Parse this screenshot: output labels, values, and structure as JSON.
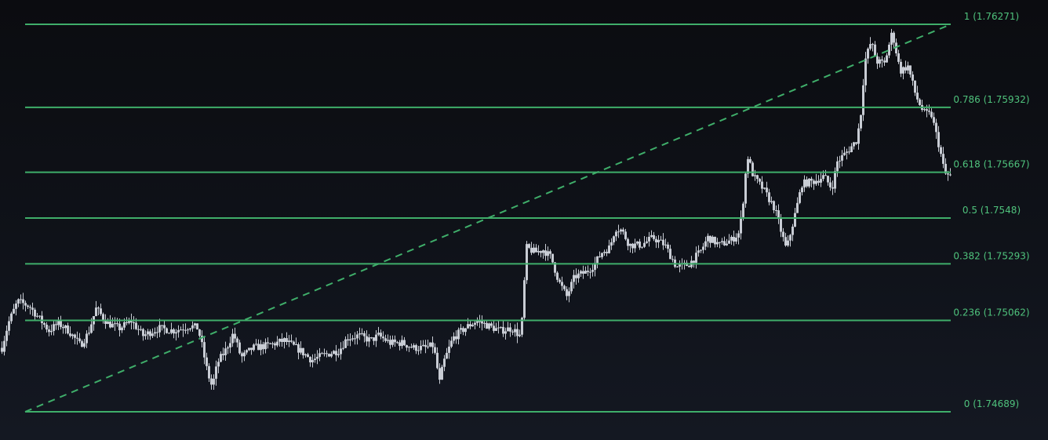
{
  "colors": {
    "fib_line": "#3fae6a",
    "fib_text": "#4fc27c",
    "candle": "#c8ccd4",
    "trendline": "#3fae6a",
    "background_top": "#0b0c10",
    "background_bottom": "#141822"
  },
  "chart_data": {
    "type": "candlestick",
    "ylim": [
      1.74689,
      1.76271
    ],
    "grid": false,
    "legend": "none",
    "fib_levels": [
      {
        "ratio": 1,
        "price": 1.76271,
        "label": "1 (1.76271)"
      },
      {
        "ratio": 0.786,
        "price": 1.75932,
        "label": "0.786 (1.75932)"
      },
      {
        "ratio": 0.618,
        "price": 1.75667,
        "label": "0.618 (1.75667)"
      },
      {
        "ratio": 0.5,
        "price": 1.7548,
        "label": "0.5 (1.7548)"
      },
      {
        "ratio": 0.382,
        "price": 1.75293,
        "label": "0.382 (1.75293)"
      },
      {
        "ratio": 0.236,
        "price": 1.75062,
        "label": "0.236 (1.75062)"
      },
      {
        "ratio": 0,
        "price": 1.74689,
        "label": "0 (1.74689)"
      }
    ],
    "trendline": {
      "from_price": 1.74689,
      "to_price": 1.76271,
      "style": "dashed"
    },
    "price_path": [
      [
        0,
        1.7495
      ],
      [
        8,
        1.7505
      ],
      [
        20,
        1.7514
      ],
      [
        35,
        1.7512
      ],
      [
        50,
        1.7506
      ],
      [
        60,
        1.7502
      ],
      [
        72,
        1.7505
      ],
      [
        85,
        1.7502
      ],
      [
        100,
        1.7496
      ],
      [
        110,
        1.7501
      ],
      [
        120,
        1.7511
      ],
      [
        135,
        1.7505
      ],
      [
        150,
        1.7503
      ],
      [
        165,
        1.7506
      ],
      [
        180,
        1.75
      ],
      [
        200,
        1.7503
      ],
      [
        220,
        1.7502
      ],
      [
        240,
        1.7504
      ],
      [
        250,
        1.7503
      ],
      [
        255,
        1.7496
      ],
      [
        262,
        1.7485
      ],
      [
        268,
        1.7479
      ],
      [
        275,
        1.7489
      ],
      [
        285,
        1.7494
      ],
      [
        295,
        1.7501
      ],
      [
        305,
        1.7491
      ],
      [
        320,
        1.7495
      ],
      [
        340,
        1.7496
      ],
      [
        360,
        1.7498
      ],
      [
        380,
        1.7494
      ],
      [
        395,
        1.749
      ],
      [
        410,
        1.7492
      ],
      [
        430,
        1.7494
      ],
      [
        440,
        1.7499
      ],
      [
        455,
        1.75
      ],
      [
        470,
        1.7498
      ],
      [
        480,
        1.75
      ],
      [
        495,
        1.7497
      ],
      [
        510,
        1.7497
      ],
      [
        525,
        1.7495
      ],
      [
        540,
        1.7495
      ],
      [
        550,
        1.7496
      ],
      [
        558,
        1.7481
      ],
      [
        563,
        1.7489
      ],
      [
        575,
        1.7499
      ],
      [
        590,
        1.7503
      ],
      [
        605,
        1.7506
      ],
      [
        620,
        1.7504
      ],
      [
        635,
        1.7502
      ],
      [
        650,
        1.7503
      ],
      [
        660,
        1.75
      ],
      [
        664,
        1.7508
      ],
      [
        668,
        1.7536
      ],
      [
        680,
        1.7534
      ],
      [
        690,
        1.7535
      ],
      [
        700,
        1.7532
      ],
      [
        710,
        1.7522
      ],
      [
        720,
        1.7516
      ],
      [
        730,
        1.7524
      ],
      [
        745,
        1.7526
      ],
      [
        755,
        1.7529
      ],
      [
        765,
        1.7534
      ],
      [
        775,
        1.7536
      ],
      [
        782,
        1.7544
      ],
      [
        790,
        1.7543
      ],
      [
        800,
        1.7537
      ],
      [
        815,
        1.7537
      ],
      [
        830,
        1.754
      ],
      [
        845,
        1.7537
      ],
      [
        860,
        1.7528
      ],
      [
        875,
        1.7529
      ],
      [
        890,
        1.7534
      ],
      [
        900,
        1.754
      ],
      [
        915,
        1.7537
      ],
      [
        930,
        1.7539
      ],
      [
        940,
        1.7542
      ],
      [
        946,
        1.7558
      ],
      [
        950,
        1.7574
      ],
      [
        958,
        1.7565
      ],
      [
        970,
        1.756
      ],
      [
        985,
        1.7552
      ],
      [
        1000,
        1.7535
      ],
      [
        1010,
        1.7548
      ],
      [
        1020,
        1.7562
      ],
      [
        1035,
        1.7563
      ],
      [
        1048,
        1.7565
      ],
      [
        1058,
        1.756
      ],
      [
        1065,
        1.7571
      ],
      [
        1080,
        1.7576
      ],
      [
        1090,
        1.758
      ],
      [
        1095,
        1.7591
      ],
      [
        1100,
        1.7612
      ],
      [
        1108,
        1.762
      ],
      [
        1115,
        1.7612
      ],
      [
        1125,
        1.7611
      ],
      [
        1135,
        1.7624
      ],
      [
        1145,
        1.7608
      ],
      [
        1155,
        1.761
      ],
      [
        1165,
        1.7598
      ],
      [
        1175,
        1.7591
      ],
      [
        1185,
        1.759
      ],
      [
        1195,
        1.7577
      ],
      [
        1202,
        1.7566
      ],
      [
        1210,
        1.7565
      ]
    ]
  }
}
